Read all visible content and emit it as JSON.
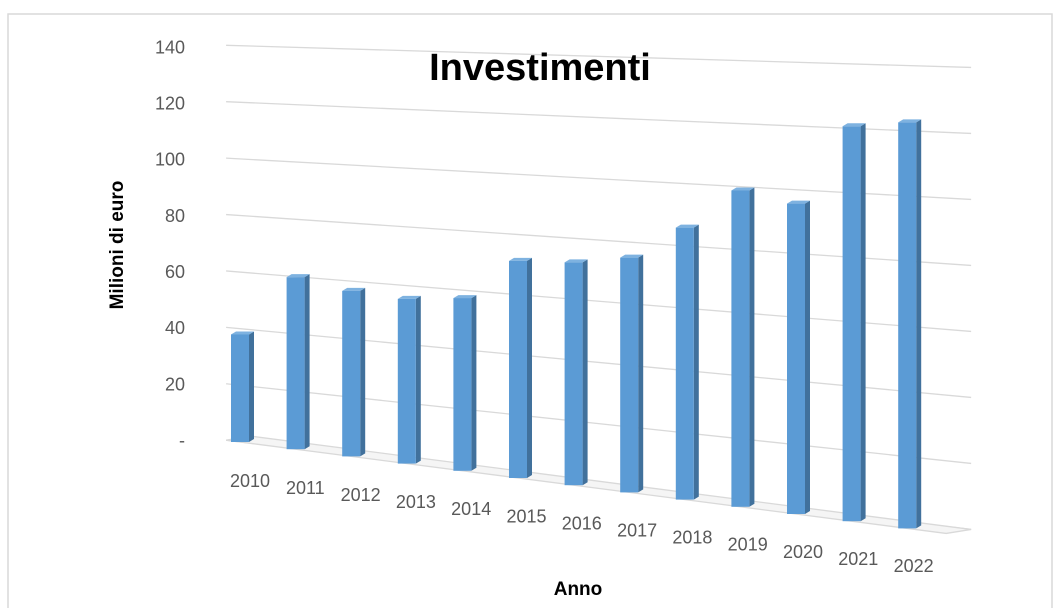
{
  "chart_data": {
    "type": "bar",
    "title": "Investimenti",
    "y_label": "Milioni di euro",
    "x_label": "Anno",
    "categories": [
      "2010",
      "2011",
      "2012",
      "2013",
      "2014",
      "2015",
      "2016",
      "2017",
      "2018",
      "2019",
      "2020",
      "2021",
      "2022"
    ],
    "values": [
      38,
      60,
      57,
      56,
      58,
      72,
      73,
      76,
      87,
      100,
      97,
      122,
      124
    ],
    "color": "#5b9bd5",
    "ylim": [
      0,
      140
    ],
    "yticks": [
      {
        "value": 0,
        "label": "-"
      },
      20,
      40,
      60,
      80,
      100,
      120,
      140
    ],
    "grid": true
  }
}
